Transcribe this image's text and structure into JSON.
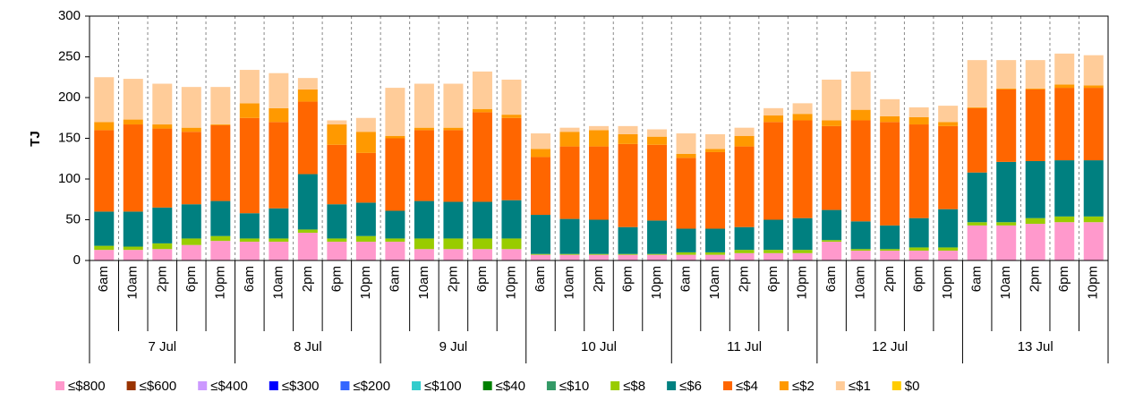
{
  "chart_data": {
    "type": "stacked-bar",
    "y_label": "TJ",
    "categories": [
      "6am",
      "10am",
      "2pm",
      "6pm",
      "10pm",
      "6am",
      "10am",
      "2pm",
      "6pm",
      "10pm",
      "6am",
      "10am",
      "2pm",
      "6pm",
      "10pm",
      "6am",
      "10am",
      "2pm",
      "6pm",
      "10pm",
      "6am",
      "10am",
      "2pm",
      "6pm",
      "10pm",
      "6am",
      "10am",
      "2pm",
      "6pm",
      "10pm",
      "6am",
      "10am",
      "2pm",
      "6pm",
      "10pm"
    ],
    "groups": [
      "7 Jul",
      "8 Jul",
      "9 Jul",
      "10 Jul",
      "11 Jul",
      "12 Jul",
      "13 Jul"
    ],
    "ylim": [
      0,
      300
    ],
    "yticks": [
      0,
      50,
      100,
      150,
      200,
      250,
      300
    ],
    "grid": true,
    "series": [
      {
        "name": "≤$800",
        "color": "#ff99cc",
        "values": [
          13,
          13,
          14,
          19,
          24,
          23,
          23,
          34,
          23,
          23,
          23,
          14,
          14,
          14,
          14,
          7,
          7,
          7,
          7,
          7,
          7,
          7,
          9,
          9,
          9,
          23,
          12,
          12,
          12,
          12,
          43,
          43,
          45,
          47,
          47
        ]
      },
      {
        "name": "≤$600",
        "color": "#993300",
        "values": [
          0,
          0,
          0,
          0,
          0,
          0,
          0,
          0,
          0,
          0,
          0,
          0,
          0,
          0,
          0,
          0,
          0,
          0,
          0,
          0,
          0,
          0,
          0,
          0,
          0,
          0,
          0,
          0,
          0,
          0,
          0,
          0,
          0,
          0,
          0
        ]
      },
      {
        "name": "≤$400",
        "color": "#cc99ff",
        "values": [
          0,
          0,
          0,
          0,
          0,
          0,
          0,
          0,
          0,
          0,
          0,
          0,
          0,
          0,
          0,
          0,
          0,
          0,
          0,
          0,
          0,
          0,
          0,
          0,
          0,
          0,
          0,
          0,
          0,
          0,
          0,
          0,
          0,
          0,
          0
        ]
      },
      {
        "name": "≤$300",
        "color": "#0000ff",
        "values": [
          0,
          0,
          0,
          0,
          0,
          0,
          0,
          0,
          0,
          0,
          0,
          0,
          0,
          0,
          0,
          0,
          0,
          0,
          0,
          0,
          0,
          0,
          0,
          0,
          0,
          0,
          0,
          0,
          0,
          0,
          0,
          0,
          0,
          0,
          0
        ]
      },
      {
        "name": "≤$200",
        "color": "#3366ff",
        "values": [
          0,
          0,
          0,
          0,
          0,
          0,
          0,
          0,
          0,
          0,
          0,
          0,
          0,
          0,
          0,
          0,
          0,
          0,
          0,
          0,
          0,
          0,
          0,
          0,
          0,
          0,
          0,
          0,
          0,
          0,
          0,
          0,
          0,
          0,
          0
        ]
      },
      {
        "name": "≤$100",
        "color": "#33cccc",
        "values": [
          0,
          0,
          0,
          0,
          0,
          0,
          0,
          0,
          0,
          0,
          0,
          0,
          0,
          0,
          0,
          0,
          0,
          0,
          0,
          0,
          0,
          0,
          0,
          0,
          0,
          0,
          0,
          0,
          0,
          0,
          0,
          0,
          0,
          0,
          0
        ]
      },
      {
        "name": "≤$40",
        "color": "#008000",
        "values": [
          0,
          0,
          0,
          0,
          0,
          0,
          0,
          0,
          0,
          0,
          0,
          0,
          0,
          0,
          0,
          0,
          0,
          0,
          0,
          0,
          0,
          0,
          0,
          0,
          0,
          0,
          0,
          0,
          0,
          0,
          0,
          0,
          0,
          0,
          0
        ]
      },
      {
        "name": "≤$10",
        "color": "#339966",
        "values": [
          0,
          0,
          0,
          0,
          0,
          0,
          0,
          0,
          0,
          0,
          0,
          0,
          0,
          0,
          0,
          0,
          0,
          0,
          0,
          0,
          0,
          0,
          0,
          0,
          0,
          0,
          0,
          0,
          0,
          0,
          0,
          0,
          0,
          0,
          0
        ]
      },
      {
        "name": "≤$8",
        "color": "#99cc00",
        "values": [
          5,
          4,
          7,
          8,
          6,
          4,
          4,
          4,
          4,
          7,
          4,
          13,
          13,
          13,
          13,
          1,
          1,
          1,
          1,
          1,
          3,
          3,
          4,
          4,
          4,
          2,
          2,
          2,
          4,
          4,
          4,
          4,
          7,
          7,
          7
        ]
      },
      {
        "name": "≤$6",
        "color": "#008080",
        "values": [
          42,
          43,
          44,
          42,
          43,
          31,
          37,
          68,
          42,
          41,
          34,
          46,
          45,
          45,
          47,
          48,
          43,
          42,
          33,
          41,
          29,
          29,
          28,
          37,
          39,
          37,
          34,
          29,
          36,
          47,
          61,
          74,
          70,
          69,
          69
        ]
      },
      {
        "name": "≤$4",
        "color": "#ff6600",
        "values": [
          100,
          107,
          97,
          89,
          93,
          117,
          106,
          89,
          73,
          61,
          89,
          87,
          88,
          110,
          101,
          71,
          89,
          90,
          102,
          93,
          87,
          94,
          99,
          120,
          120,
          103,
          124,
          127,
          115,
          102,
          79,
          89,
          88,
          89,
          89
        ]
      },
      {
        "name": "≤$2",
        "color": "#ff9900",
        "values": [
          10,
          6,
          5,
          5,
          1,
          18,
          17,
          15,
          25,
          26,
          3,
          3,
          3,
          4,
          4,
          10,
          18,
          20,
          12,
          10,
          5,
          4,
          13,
          8,
          8,
          7,
          13,
          7,
          9,
          5,
          1,
          1,
          1,
          4,
          3
        ]
      },
      {
        "name": "≤$1",
        "color": "#ffcc99",
        "values": [
          55,
          50,
          50,
          50,
          46,
          41,
          43,
          14,
          5,
          17,
          59,
          54,
          54,
          46,
          43,
          19,
          5,
          5,
          10,
          9,
          25,
          18,
          10,
          9,
          13,
          50,
          47,
          21,
          12,
          20,
          58,
          35,
          35,
          38,
          37
        ]
      },
      {
        "name": "$0",
        "color": "#ffcc00",
        "values": [
          0,
          0,
          0,
          0,
          0,
          0,
          0,
          0,
          0,
          0,
          0,
          0,
          0,
          0,
          0,
          0,
          0,
          0,
          0,
          0,
          0,
          0,
          0,
          0,
          0,
          0,
          0,
          0,
          0,
          0,
          0,
          0,
          0,
          0,
          0
        ]
      }
    ]
  }
}
